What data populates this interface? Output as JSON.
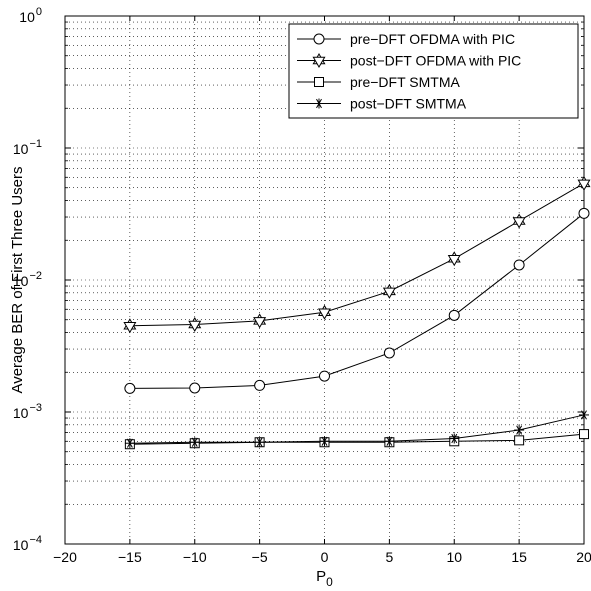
{
  "chart_data": {
    "type": "line",
    "title": "",
    "xlabel": "P",
    "xlabel_subscript": "0",
    "ylabel": "Average BER of First Three Users",
    "xlim": [
      -20,
      20
    ],
    "ylim": [
      0.0001,
      1
    ],
    "yscale": "log",
    "grid": true,
    "legend_position": "top-right",
    "x_ticks": [
      -20,
      -15,
      -10,
      -5,
      0,
      5,
      10,
      15,
      20
    ],
    "x_tick_labels": [
      "−20",
      "−15",
      "−10",
      "−5",
      "0",
      "5",
      "10",
      "15",
      "20"
    ],
    "y_ticks": [
      {
        "value": 0.0001,
        "base": "10",
        "exp": "−4"
      },
      {
        "value": 0.001,
        "base": "10",
        "exp": "−3"
      },
      {
        "value": 0.01,
        "base": "10",
        "exp": "−2"
      },
      {
        "value": 0.1,
        "base": "10",
        "exp": "−1"
      },
      {
        "value": 1,
        "base": "10",
        "exp": "0"
      }
    ],
    "x": [
      -15,
      -10,
      -5,
      0,
      5,
      10,
      15,
      20
    ],
    "series": [
      {
        "name": "pre−DFT OFDMA with PIC",
        "marker": "circle",
        "values": [
          0.00151,
          0.00152,
          0.00159,
          0.00187,
          0.0028,
          0.0054,
          0.013,
          0.032
        ]
      },
      {
        "name": "post−DFT OFDMA with PIC",
        "marker": "star",
        "values": [
          0.0045,
          0.0046,
          0.0049,
          0.0057,
          0.0082,
          0.0145,
          0.028,
          0.054
        ]
      },
      {
        "name": "pre−DFT SMTMA",
        "marker": "square",
        "values": [
          0.00057,
          0.00058,
          0.00059,
          0.00059,
          0.00059,
          0.0006,
          0.00061,
          0.00068
        ]
      },
      {
        "name": "post−DFT SMTMA",
        "marker": "asterisk",
        "values": [
          0.00058,
          0.00059,
          0.00059,
          0.0006,
          0.0006,
          0.00063,
          0.00073,
          0.00095
        ]
      }
    ]
  }
}
